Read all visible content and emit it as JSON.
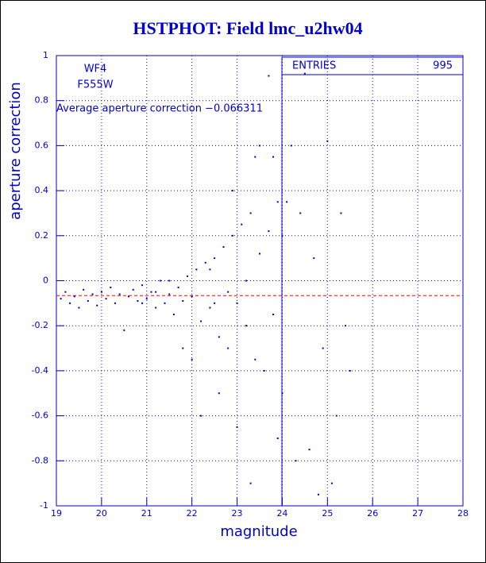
{
  "chart_data": {
    "type": "scatter",
    "title": "HSTPHOT: Field lmc_u2hw04",
    "xlabel": "magnitude",
    "ylabel": "aperture correction",
    "annotations": [
      "WF4",
      "F555W",
      "Average aperture correction −0.066311"
    ],
    "stats": {
      "label": "ENTRIES",
      "value": 995
    },
    "reference_line": {
      "value": -0.066311,
      "color": "#ff0000"
    },
    "color": "#0000cc",
    "grid": true,
    "xlim": [
      19,
      28
    ],
    "ylim": [
      -1,
      1
    ],
    "xticks": [
      19,
      20,
      21,
      22,
      23,
      24,
      25,
      26,
      27,
      28
    ],
    "yticks": [
      -1,
      -0.8,
      -0.6,
      -0.4,
      -0.2,
      0,
      0.2,
      0.4,
      0.6,
      0.8,
      1
    ],
    "x": [
      19.1,
      19.2,
      19.3,
      19.4,
      19.5,
      19.6,
      19.7,
      19.8,
      19.9,
      20.0,
      20.1,
      20.2,
      20.3,
      20.4,
      20.5,
      20.6,
      20.7,
      20.8,
      20.9,
      21.0,
      21.1,
      21.2,
      21.3,
      21.4,
      21.5,
      21.6,
      21.7,
      21.8,
      21.9,
      22.0,
      22.1,
      22.2,
      22.3,
      22.4,
      22.5,
      22.6,
      22.7,
      22.8,
      22.9,
      23.0,
      23.1,
      23.2,
      23.3,
      23.4,
      23.5,
      23.6,
      23.7,
      23.8,
      23.9,
      24.0,
      22.2,
      22.6,
      23.0,
      23.3,
      23.8,
      23.7,
      24.1,
      24.4,
      24.6,
      24.8,
      25.1,
      25.3,
      25.5,
      25.0,
      24.2,
      24.5,
      23.5,
      23.4,
      24.9,
      25.2,
      24.3,
      23.9,
      22.9,
      22.4,
      21.8,
      21.5,
      22.0,
      24.7,
      25.4,
      24.0,
      23.2,
      22.8,
      22.5,
      21.2,
      20.9
    ],
    "y": [
      -0.08,
      -0.05,
      -0.1,
      -0.07,
      -0.12,
      -0.04,
      -0.09,
      -0.06,
      -0.11,
      -0.05,
      -0.08,
      -0.03,
      -0.1,
      -0.06,
      -0.22,
      -0.07,
      -0.04,
      -0.09,
      -0.02,
      -0.08,
      -0.05,
      -0.12,
      0.0,
      -0.1,
      -0.06,
      -0.15,
      -0.03,
      -0.09,
      0.02,
      -0.07,
      0.05,
      -0.18,
      0.08,
      -0.12,
      0.1,
      -0.25,
      0.15,
      -0.3,
      0.2,
      -0.1,
      0.25,
      -0.2,
      0.3,
      -0.35,
      0.12,
      -0.4,
      0.22,
      -0.15,
      0.35,
      -0.5,
      -0.6,
      -0.5,
      -0.65,
      -0.9,
      0.55,
      0.91,
      0.35,
      0.3,
      -0.75,
      -0.95,
      -0.9,
      0.3,
      -0.4,
      0.62,
      0.6,
      0.92,
      0.6,
      0.55,
      -0.3,
      -0.6,
      -0.8,
      -0.7,
      0.4,
      0.05,
      -0.3,
      0.0,
      -0.35,
      0.1,
      -0.2,
      0.2,
      0.0,
      -0.05,
      -0.1,
      -0.05,
      -0.1
    ]
  }
}
